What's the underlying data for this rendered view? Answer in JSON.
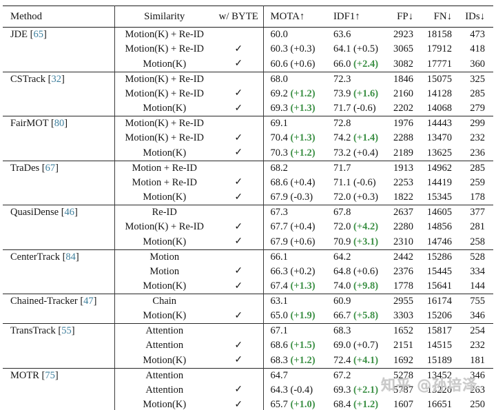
{
  "table": {
    "columns": [
      "Method",
      "Similarity",
      "w/ BYTE",
      "MOTA↑",
      "IDF1↑",
      "FP↓",
      "FN↓",
      "IDs↓"
    ],
    "check_glyph": "✓",
    "groups": [
      {
        "method": "JDE",
        "cite": "65",
        "rows": [
          {
            "sim": "Motion(K) + Re-ID",
            "byte": false,
            "mota": "60.0",
            "motad": "",
            "motag": false,
            "idf1": "63.6",
            "idf1d": "",
            "idf1g": false,
            "fp": "2923",
            "fn": "18158",
            "ids": "473"
          },
          {
            "sim": "Motion(K) + Re-ID",
            "byte": true,
            "mota": "60.3",
            "motad": "(+0.3)",
            "motag": false,
            "idf1": "64.1",
            "idf1d": "(+0.5)",
            "idf1g": false,
            "fp": "3065",
            "fn": "17912",
            "ids": "418"
          },
          {
            "sim": "Motion(K)",
            "byte": true,
            "mota": "60.6",
            "motad": "(+0.6)",
            "motag": false,
            "idf1": "66.0",
            "idf1d": "(+2.4)",
            "idf1g": true,
            "fp": "3082",
            "fn": "17771",
            "ids": "360"
          }
        ]
      },
      {
        "method": "CSTrack",
        "cite": "32",
        "rows": [
          {
            "sim": "Motion(K) + Re-ID",
            "byte": false,
            "mota": "68.0",
            "motad": "",
            "motag": false,
            "idf1": "72.3",
            "idf1d": "",
            "idf1g": false,
            "fp": "1846",
            "fn": "15075",
            "ids": "325"
          },
          {
            "sim": "Motion(K) + Re-ID",
            "byte": true,
            "mota": "69.2",
            "motad": "(+1.2)",
            "motag": true,
            "idf1": "73.9",
            "idf1d": "(+1.6)",
            "idf1g": true,
            "fp": "2160",
            "fn": "14128",
            "ids": "285"
          },
          {
            "sim": "Motion(K)",
            "byte": true,
            "mota": "69.3",
            "motad": "(+1.3)",
            "motag": true,
            "idf1": "71.7",
            "idf1d": "(-0.6)",
            "idf1g": false,
            "fp": "2202",
            "fn": "14068",
            "ids": "279"
          }
        ]
      },
      {
        "method": "FairMOT",
        "cite": "80",
        "rows": [
          {
            "sim": "Motion(K) + Re-ID",
            "byte": false,
            "mota": "69.1",
            "motad": "",
            "motag": false,
            "idf1": "72.8",
            "idf1d": "",
            "idf1g": false,
            "fp": "1976",
            "fn": "14443",
            "ids": "299"
          },
          {
            "sim": "Motion(K) + Re-ID",
            "byte": true,
            "mota": "70.4",
            "motad": "(+1.3)",
            "motag": true,
            "idf1": "74.2",
            "idf1d": "(+1.4)",
            "idf1g": true,
            "fp": "2288",
            "fn": "13470",
            "ids": "232"
          },
          {
            "sim": "Motion(K)",
            "byte": true,
            "mota": "70.3",
            "motad": "(+1.2)",
            "motag": true,
            "idf1": "73.2",
            "idf1d": "(+0.4)",
            "idf1g": false,
            "fp": "2189",
            "fn": "13625",
            "ids": "236"
          }
        ]
      },
      {
        "method": "TraDes",
        "cite": "67",
        "rows": [
          {
            "sim": "Motion + Re-ID",
            "byte": false,
            "mota": "68.2",
            "motad": "",
            "motag": false,
            "idf1": "71.7",
            "idf1d": "",
            "idf1g": false,
            "fp": "1913",
            "fn": "14962",
            "ids": "285"
          },
          {
            "sim": "Motion + Re-ID",
            "byte": true,
            "mota": "68.6",
            "motad": "(+0.4)",
            "motag": false,
            "idf1": "71.1",
            "idf1d": "(-0.6)",
            "idf1g": false,
            "fp": "2253",
            "fn": "14419",
            "ids": "259"
          },
          {
            "sim": "Motion(K)",
            "byte": true,
            "mota": "67.9",
            "motad": "(-0.3)",
            "motag": false,
            "idf1": "72.0",
            "idf1d": "(+0.3)",
            "idf1g": false,
            "fp": "1822",
            "fn": "15345",
            "ids": "178"
          }
        ]
      },
      {
        "method": "QuasiDense",
        "cite": "46",
        "rows": [
          {
            "sim": "Re-ID",
            "byte": false,
            "mota": "67.3",
            "motad": "",
            "motag": false,
            "idf1": "67.8",
            "idf1d": "",
            "idf1g": false,
            "fp": "2637",
            "fn": "14605",
            "ids": "377"
          },
          {
            "sim": "Motion(K) + Re-ID",
            "byte": true,
            "mota": "67.7",
            "motad": "(+0.4)",
            "motag": false,
            "idf1": "72.0",
            "idf1d": "(+4.2)",
            "idf1g": true,
            "fp": "2280",
            "fn": "14856",
            "ids": "281"
          },
          {
            "sim": "Motion(K)",
            "byte": true,
            "mota": "67.9",
            "motad": "(+0.6)",
            "motag": false,
            "idf1": "70.9",
            "idf1d": "(+3.1)",
            "idf1g": true,
            "fp": "2310",
            "fn": "14746",
            "ids": "258"
          }
        ]
      },
      {
        "method": "CenterTrack",
        "cite": "84",
        "rows": [
          {
            "sim": "Motion",
            "byte": false,
            "mota": "66.1",
            "motad": "",
            "motag": false,
            "idf1": "64.2",
            "idf1d": "",
            "idf1g": false,
            "fp": "2442",
            "fn": "15286",
            "ids": "528"
          },
          {
            "sim": "Motion",
            "byte": true,
            "mota": "66.3",
            "motad": "(+0.2)",
            "motag": false,
            "idf1": "64.8",
            "idf1d": "(+0.6)",
            "idf1g": false,
            "fp": "2376",
            "fn": "15445",
            "ids": "334"
          },
          {
            "sim": "Motion(K)",
            "byte": true,
            "mota": "67.4",
            "motad": "(+1.3)",
            "motag": true,
            "idf1": "74.0",
            "idf1d": "(+9.8)",
            "idf1g": true,
            "fp": "1778",
            "fn": "15641",
            "ids": "144"
          }
        ]
      },
      {
        "method": "Chained-Tracker",
        "cite": "47",
        "rows": [
          {
            "sim": "Chain",
            "byte": false,
            "mota": "63.1",
            "motad": "",
            "motag": false,
            "idf1": "60.9",
            "idf1d": "",
            "idf1g": false,
            "fp": "2955",
            "fn": "16174",
            "ids": "755"
          },
          {
            "sim": "Motion(K)",
            "byte": true,
            "mota": "65.0",
            "motad": "(+1.9)",
            "motag": true,
            "idf1": "66.7",
            "idf1d": "(+5.8)",
            "idf1g": true,
            "fp": "3303",
            "fn": "15206",
            "ids": "346"
          }
        ]
      },
      {
        "method": "TransTrack",
        "cite": "55",
        "rows": [
          {
            "sim": "Attention",
            "byte": false,
            "mota": "67.1",
            "motad": "",
            "motag": false,
            "idf1": "68.3",
            "idf1d": "",
            "idf1g": false,
            "fp": "1652",
            "fn": "15817",
            "ids": "254"
          },
          {
            "sim": "Attention",
            "byte": true,
            "mota": "68.6",
            "motad": "(+1.5)",
            "motag": true,
            "idf1": "69.0",
            "idf1d": "(+0.7)",
            "idf1g": false,
            "fp": "2151",
            "fn": "14515",
            "ids": "232"
          },
          {
            "sim": "Motion(K)",
            "byte": true,
            "mota": "68.3",
            "motad": "(+1.2)",
            "motag": true,
            "idf1": "72.4",
            "idf1d": "(+4.1)",
            "idf1g": true,
            "fp": "1692",
            "fn": "15189",
            "ids": "181"
          }
        ]
      },
      {
        "method": "MOTR",
        "cite": "75",
        "rows": [
          {
            "sim": "Attention",
            "byte": false,
            "mota": "64.7",
            "motad": "",
            "motag": false,
            "idf1": "67.2",
            "idf1d": "",
            "idf1g": false,
            "fp": "5278",
            "fn": "13452",
            "ids": "346"
          },
          {
            "sim": "Attention",
            "byte": true,
            "mota": "64.3",
            "motad": "(-0.4)",
            "motag": false,
            "idf1": "69.3",
            "idf1d": "(+2.1)",
            "idf1g": true,
            "fp": "5787",
            "fn": "13220",
            "ids": "263"
          },
          {
            "sim": "Motion(K)",
            "byte": true,
            "mota": "65.7",
            "motad": "(+1.0)",
            "motag": true,
            "idf1": "68.4",
            "idf1d": "(+1.2)",
            "idf1g": true,
            "fp": "1607",
            "fn": "16651",
            "ids": "250"
          }
        ]
      }
    ]
  },
  "watermark": "知乎 @孙培泽",
  "colors": {
    "citation": "#3e7f9d",
    "positive_delta": "#3c9045",
    "text": "#151515",
    "watermark": "#c1c1c1"
  }
}
